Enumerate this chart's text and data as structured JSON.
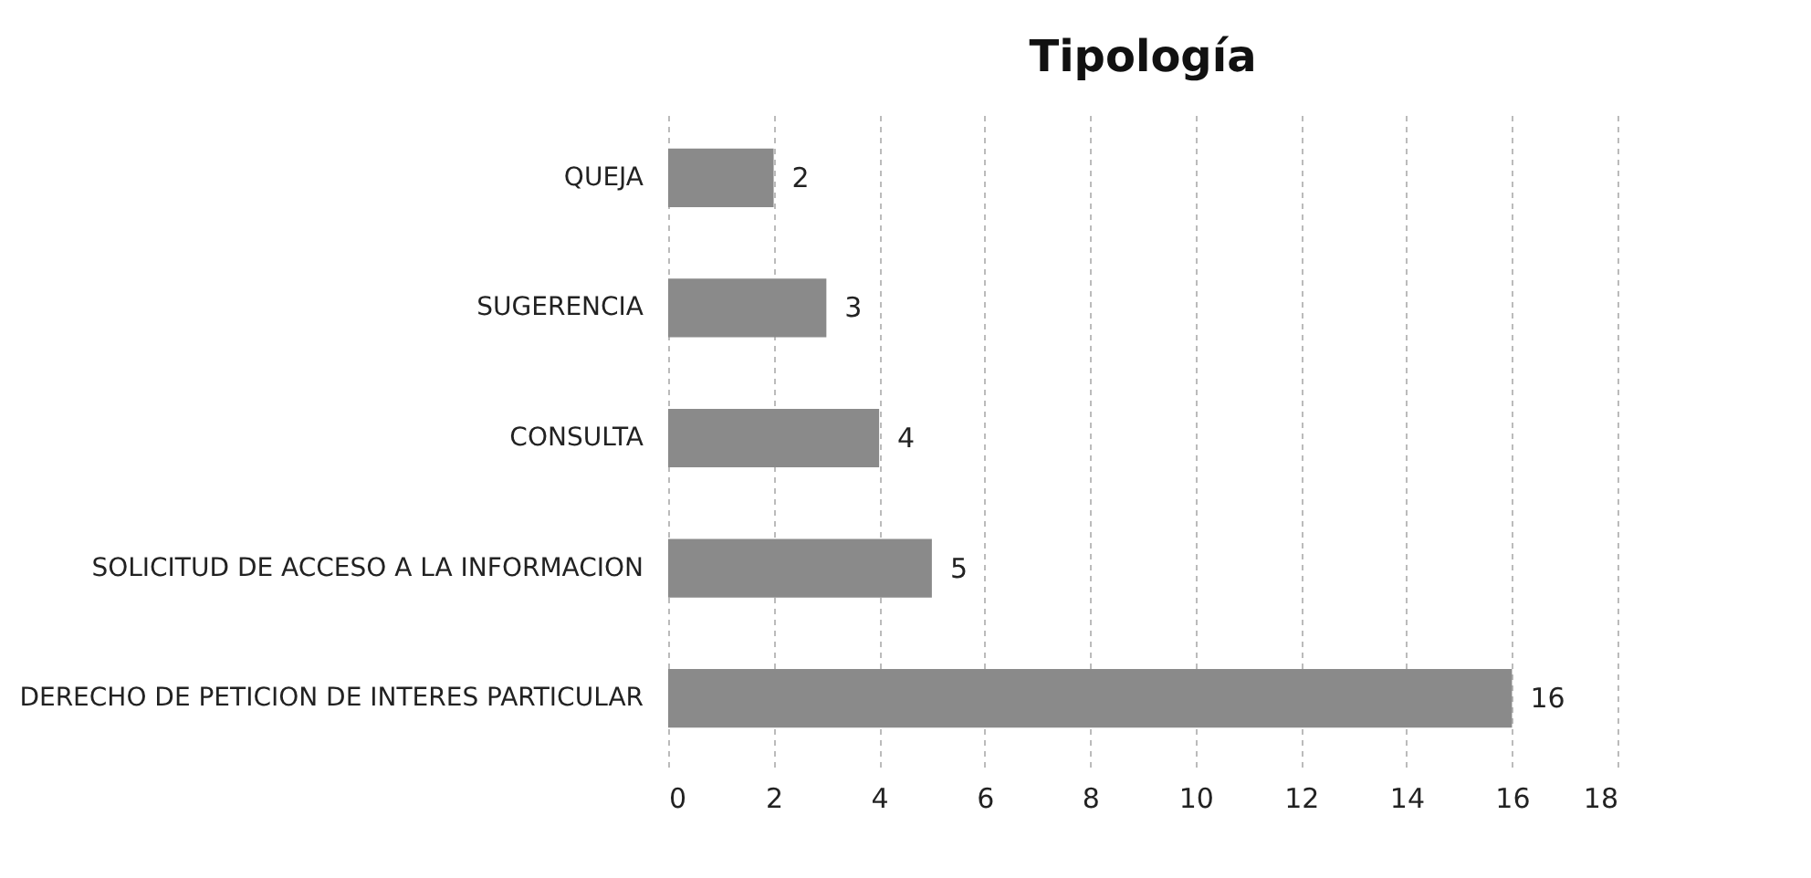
{
  "chart_data": {
    "type": "bar",
    "orientation": "horizontal",
    "title": "Tipología",
    "categories": [
      "QUEJA",
      "SUGERENCIA",
      "CONSULTA",
      "SOLICITUD DE ACCESO A LA INFORMACION",
      "DERECHO DE PETICION DE INTERES PARTICULAR"
    ],
    "values": [
      2,
      3,
      4,
      5,
      16
    ],
    "color": "#8a8a8a",
    "xlim": [
      0,
      18
    ],
    "xticks": [
      0,
      2,
      4,
      6,
      8,
      10,
      12,
      14,
      16,
      18
    ],
    "grid": "x",
    "data_labels": true
  }
}
